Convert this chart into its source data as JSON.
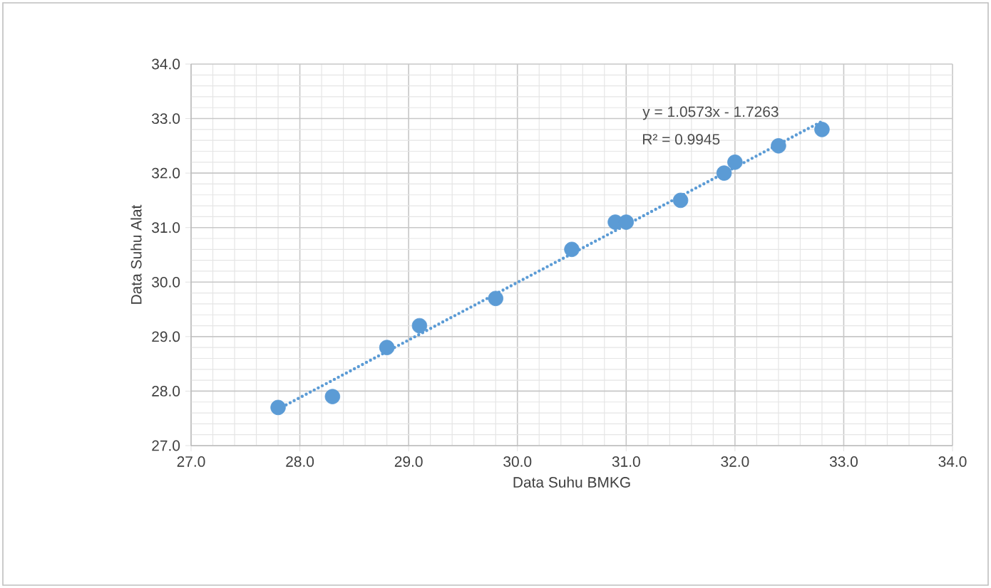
{
  "chart_data": {
    "type": "scatter",
    "xlabel": "Data Suhu BMKG",
    "ylabel": "Data Suhu Alat",
    "xlim": [
      27.0,
      34.0
    ],
    "ylim": [
      27.0,
      34.0
    ],
    "xticks": [
      {
        "value": 27,
        "label": "27.0"
      },
      {
        "value": 28,
        "label": "28.0"
      },
      {
        "value": 29,
        "label": "29.0"
      },
      {
        "value": 30,
        "label": "30.0"
      },
      {
        "value": 31,
        "label": "31.0"
      },
      {
        "value": 32,
        "label": "32.0"
      },
      {
        "value": 33,
        "label": "33.0"
      },
      {
        "value": 34,
        "label": "34.0"
      }
    ],
    "yticks": [
      {
        "value": 27,
        "label": "27.0"
      },
      {
        "value": 28,
        "label": "28.0"
      },
      {
        "value": 29,
        "label": "29.0"
      },
      {
        "value": 30,
        "label": "30.0"
      },
      {
        "value": 31,
        "label": "31.0"
      },
      {
        "value": 32,
        "label": "32.0"
      },
      {
        "value": 33,
        "label": "33.0"
      },
      {
        "value": 34,
        "label": "34.0"
      }
    ],
    "grid": true,
    "marker": "circle",
    "series": [
      {
        "color": "#5b9bd5",
        "x": [
          27.8,
          28.3,
          28.8,
          29.1,
          29.8,
          30.5,
          30.9,
          31.0,
          31.5,
          31.9,
          32.0,
          32.4,
          32.8
        ],
        "values": [
          27.7,
          27.9,
          28.8,
          29.2,
          29.7,
          30.6,
          31.1,
          31.1,
          31.5,
          32.0,
          32.2,
          32.5,
          32.8
        ]
      },
      {
        "type": "line",
        "color": "#5b9bd5",
        "line_style": "dotted",
        "marker": "none",
        "x": [
          27.8,
          32.8
        ],
        "values": [
          27.67,
          32.95
        ]
      }
    ],
    "annotations": [
      "y = 1.0573x - 1.7263",
      "R² = 0.9945"
    ]
  }
}
